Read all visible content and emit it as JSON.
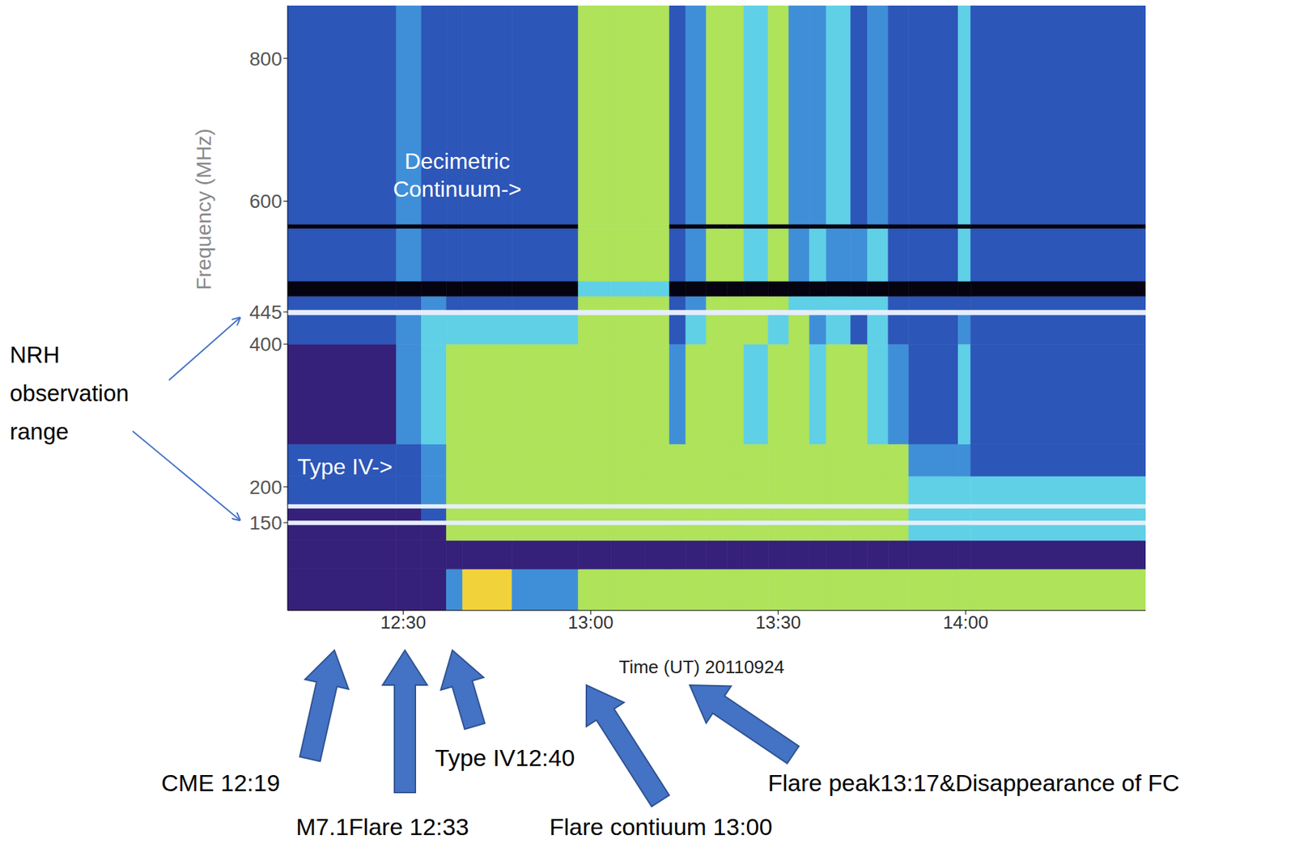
{
  "chart_data": {
    "type": "heatmap",
    "x_label": "Time (UT) 20110924",
    "y_label": "Frequency (MHz)",
    "xlim": [
      731.5,
      868.8
    ],
    "ylim": [
      27,
      874
    ],
    "xticks": [
      {
        "value": 750,
        "label": "12:30"
      },
      {
        "value": 780,
        "label": "13:00"
      },
      {
        "value": 810,
        "label": "13:30"
      },
      {
        "value": 840,
        "label": "14:00"
      }
    ],
    "yticks": [
      150,
      200,
      400,
      445,
      600,
      800
    ],
    "x_edges": [
      731.5,
      748.9,
      752.9,
      756.9,
      759.5,
      767.4,
      778.0,
      783.3,
      788.6,
      792.6,
      795.2,
      798.5,
      801.8,
      804.5,
      808.4,
      811.7,
      815.0,
      817.7,
      821.6,
      824.3,
      827.6,
      830.9,
      838.8,
      840.8,
      868.8
    ],
    "y_edges": [
      27,
      85,
      125,
      147,
      153,
      170,
      176,
      215,
      260,
      400,
      441,
      448,
      467,
      488,
      562,
      568,
      874
    ],
    "cells": [
      [
        1,
        1,
        1,
        3,
        6,
        3,
        5,
        5,
        5,
        5,
        5,
        5,
        5,
        5,
        5,
        5,
        5,
        5,
        5,
        5,
        5,
        5,
        5,
        5
      ],
      [
        1,
        1,
        1,
        1,
        1,
        1,
        1,
        1,
        1,
        1,
        1,
        1,
        1,
        1,
        1,
        1,
        1,
        1,
        1,
        1,
        1,
        1,
        1,
        1
      ],
      [
        1,
        1,
        1,
        5,
        5,
        5,
        5,
        5,
        5,
        5,
        5,
        5,
        5,
        5,
        5,
        5,
        5,
        5,
        5,
        5,
        5,
        4,
        4,
        4
      ],
      [
        7,
        7,
        7,
        7,
        7,
        7,
        7,
        7,
        7,
        7,
        7,
        7,
        7,
        7,
        7,
        7,
        7,
        7,
        7,
        7,
        7,
        7,
        7,
        7
      ],
      [
        1,
        1,
        2,
        5,
        5,
        5,
        5,
        5,
        5,
        5,
        5,
        5,
        5,
        5,
        5,
        5,
        5,
        5,
        5,
        5,
        5,
        4,
        4,
        4
      ],
      [
        7,
        7,
        7,
        7,
        7,
        7,
        7,
        7,
        7,
        7,
        7,
        7,
        7,
        7,
        7,
        7,
        7,
        7,
        7,
        7,
        7,
        7,
        7,
        7
      ],
      [
        2,
        2,
        3,
        5,
        5,
        5,
        5,
        5,
        5,
        5,
        5,
        5,
        5,
        5,
        5,
        5,
        5,
        5,
        5,
        5,
        5,
        4,
        4,
        4
      ],
      [
        2,
        2,
        3,
        5,
        5,
        5,
        5,
        5,
        5,
        5,
        5,
        5,
        5,
        5,
        5,
        5,
        5,
        5,
        5,
        5,
        5,
        3,
        3,
        2
      ],
      [
        1,
        3,
        4,
        5,
        5,
        5,
        5,
        5,
        5,
        3,
        5,
        5,
        5,
        4,
        5,
        5,
        4,
        5,
        5,
        4,
        3,
        2,
        4,
        2
      ],
      [
        2,
        3,
        4,
        4,
        4,
        4,
        5,
        5,
        5,
        2,
        4,
        5,
        5,
        5,
        4,
        5,
        3,
        4,
        2,
        4,
        2,
        2,
        3,
        2
      ],
      [
        7,
        7,
        7,
        7,
        7,
        7,
        7,
        7,
        7,
        7,
        7,
        7,
        7,
        7,
        7,
        7,
        7,
        7,
        7,
        7,
        7,
        7,
        7,
        7
      ],
      [
        2,
        2,
        3,
        2,
        2,
        2,
        5,
        5,
        5,
        2,
        3,
        5,
        5,
        5,
        5,
        4,
        4,
        4,
        4,
        4,
        2,
        2,
        2,
        2
      ],
      [
        0,
        0,
        0,
        0,
        0,
        0,
        4,
        4,
        4,
        0,
        0,
        0,
        0,
        0,
        0,
        0,
        0,
        0,
        0,
        0,
        0,
        0,
        0,
        0
      ],
      [
        2,
        3,
        2,
        2,
        2,
        2,
        5,
        5,
        5,
        2,
        3,
        5,
        5,
        4,
        5,
        3,
        4,
        3,
        3,
        4,
        2,
        2,
        4,
        2
      ],
      [
        0,
        0,
        0,
        0,
        0,
        0,
        5,
        5,
        5,
        0,
        0,
        0,
        0,
        0,
        0,
        0,
        0,
        0,
        0,
        0,
        0,
        0,
        0,
        0
      ],
      [
        2,
        3,
        2,
        2,
        2,
        2,
        5,
        5,
        5,
        2,
        3,
        5,
        5,
        4,
        5,
        3,
        3,
        4,
        2,
        3,
        2,
        2,
        4,
        2
      ]
    ],
    "inner_labels": [
      "Decimetric Continuum->",
      "Type IV->"
    ],
    "range_note": "NRH observation range",
    "event_labels": [
      "CME 12:19",
      "M7.1Flare 12:33",
      "Type IV12:40",
      "Flare contiuum 13:00",
      "Flare peak13:17&Disappearance of FC"
    ]
  }
}
